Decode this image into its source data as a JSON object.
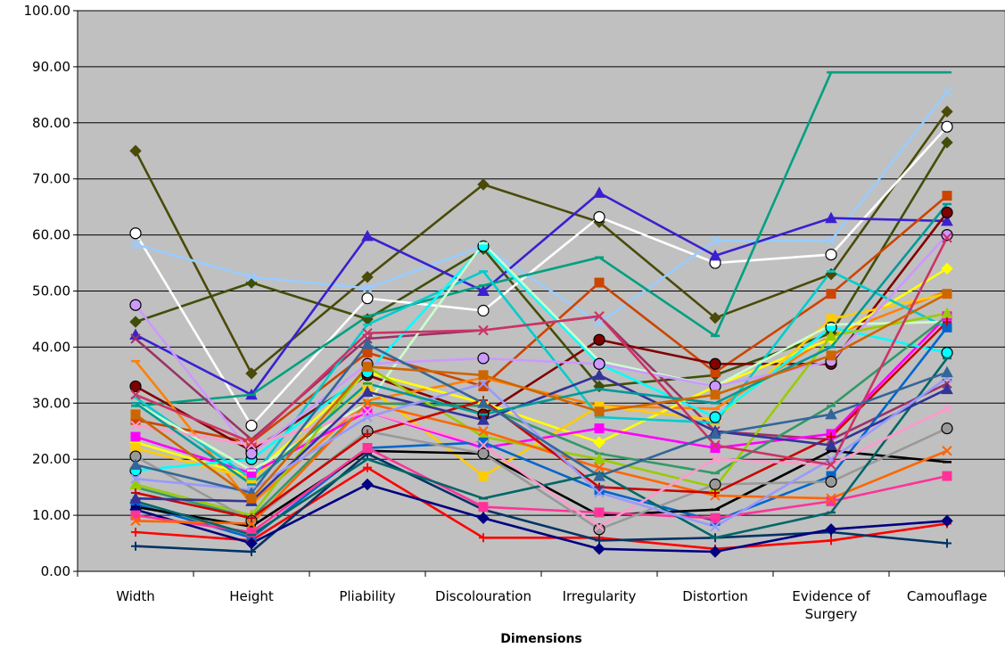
{
  "chart_data": {
    "type": "line",
    "title": "",
    "xlabel": "Dimensions",
    "ylabel": "",
    "ylim": [
      0,
      100
    ],
    "yticks": [
      0,
      10,
      20,
      30,
      40,
      50,
      60,
      70,
      80,
      90,
      100
    ],
    "ytick_labels": [
      "0.00",
      "10.00",
      "20.00",
      "30.00",
      "40.00",
      "50.00",
      "60.00",
      "70.00",
      "80.00",
      "90.00",
      "100.00"
    ],
    "categories": [
      "Width",
      "Height",
      "Pliability",
      "Discolouration",
      "Irregularity",
      "Distortion",
      "Evidence of Surgery",
      "Camouflage"
    ],
    "category_lines": [
      [
        "Width"
      ],
      [
        "Height"
      ],
      [
        "Pliability"
      ],
      [
        "Discolouration"
      ],
      [
        "Irregularity"
      ],
      [
        "Distortion"
      ],
      [
        "Evidence of",
        "Surgery"
      ],
      [
        "Camouflage"
      ]
    ],
    "grid": true,
    "legend": "none",
    "plot_background": "#c0c0c0",
    "series": [
      {
        "color": "#4a4a0a",
        "marker": "diamond",
        "values": [
          75.0,
          35.3,
          52.5,
          69.0,
          62.3,
          45.2,
          53.0,
          82.0
        ]
      },
      {
        "color": "#3f4f0a",
        "marker": "diamond",
        "values": [
          44.5,
          51.5,
          45.0,
          57.5,
          33.0,
          35.0,
          42.5,
          76.5
        ]
      },
      {
        "color": "#ffffff",
        "marker": "circle",
        "values": [
          60.3,
          26.0,
          48.7,
          46.5,
          63.2,
          55.0,
          56.5,
          79.3
        ]
      },
      {
        "color": "#99ccff",
        "marker": "x",
        "values": [
          58.3,
          52.5,
          50.5,
          58.0,
          44.3,
          59.0,
          59.0,
          85.5
        ]
      },
      {
        "color": "#3a20d0",
        "marker": "triangle",
        "values": [
          42.2,
          31.5,
          59.8,
          50.0,
          67.5,
          56.3,
          63.0,
          62.5
        ]
      },
      {
        "color": "#00a080",
        "marker": "dash",
        "values": [
          29.5,
          31.5,
          45.5,
          51.0,
          56.0,
          42.0,
          89.0,
          89.0
        ]
      },
      {
        "color": "#993366",
        "marker": "x",
        "values": [
          41.5,
          23.5,
          41.5,
          43.0,
          45.5,
          25.0,
          23.5,
          33.5
        ]
      },
      {
        "color": "#cc4400",
        "marker": "square",
        "values": [
          27.0,
          23.0,
          39.0,
          33.0,
          51.5,
          35.5,
          49.5,
          67.0
        ]
      },
      {
        "color": "#800000",
        "marker": "circle",
        "values": [
          33.0,
          21.5,
          35.0,
          28.0,
          41.3,
          37.0,
          37.0,
          64.0
        ]
      },
      {
        "color": "#ff8000",
        "marker": "dash",
        "values": [
          37.5,
          12.0,
          30.5,
          34.5,
          29.5,
          29.0,
          42.0,
          50.0
        ]
      },
      {
        "color": "#ffff00",
        "marker": "diamond",
        "values": [
          23.0,
          17.0,
          35.5,
          30.0,
          23.0,
          33.0,
          41.5,
          54.0
        ]
      },
      {
        "color": "#ffcc00",
        "marker": "square",
        "values": [
          22.0,
          16.5,
          33.0,
          17.0,
          29.5,
          27.0,
          45.0,
          49.5
        ]
      },
      {
        "color": "#ff00ff",
        "marker": "square",
        "values": [
          24.0,
          17.5,
          28.5,
          22.0,
          25.5,
          22.0,
          24.5,
          45.5
        ]
      },
      {
        "color": "#00cccc",
        "marker": "dash",
        "values": [
          31.0,
          16.5,
          44.0,
          53.5,
          27.5,
          26.5,
          53.5,
          43.5
        ]
      },
      {
        "color": "#00ffff",
        "marker": "circle",
        "values": [
          18.0,
          20.0,
          35.5,
          58.0,
          37.0,
          27.5,
          43.5,
          39.0
        ]
      },
      {
        "color": "#ccffcc",
        "marker": "dash",
        "values": [
          30.0,
          18.0,
          30.0,
          58.5,
          37.5,
          33.0,
          44.0,
          44.5
        ]
      },
      {
        "color": "#cc99ff",
        "marker": "circle",
        "values": [
          47.5,
          21.0,
          37.0,
          38.0,
          37.0,
          33.0,
          37.5,
          60.0
        ]
      },
      {
        "color": "#339966",
        "marker": "dash",
        "values": [
          15.0,
          9.5,
          30.0,
          29.5,
          21.0,
          17.5,
          29.5,
          45.5
        ]
      },
      {
        "color": "#99cc00",
        "marker": "triangle",
        "values": [
          15.5,
          10.0,
          36.5,
          24.0,
          20.0,
          15.0,
          42.0,
          46.0
        ]
      },
      {
        "color": "#0066cc",
        "marker": "square",
        "values": [
          12.0,
          6.0,
          22.0,
          23.0,
          14.5,
          9.0,
          17.0,
          43.5
        ]
      },
      {
        "color": "#000000",
        "marker": "dash",
        "values": [
          11.5,
          8.0,
          21.5,
          21.0,
          10.0,
          11.0,
          21.5,
          19.5
        ]
      },
      {
        "color": "#ff0000",
        "marker": "plus",
        "values": [
          7.0,
          5.5,
          18.5,
          6.0,
          6.0,
          4.0,
          5.5,
          8.5
        ]
      },
      {
        "color": "#003366",
        "marker": "plus",
        "values": [
          4.5,
          3.5,
          21.0,
          11.0,
          5.5,
          6.0,
          7.0,
          5.0
        ]
      },
      {
        "color": "#000080",
        "marker": "diamond",
        "values": [
          11.0,
          5.0,
          15.5,
          9.5,
          4.0,
          3.5,
          7.5,
          9.0
        ]
      },
      {
        "color": "#ff3399",
        "marker": "square",
        "values": [
          10.0,
          7.0,
          22.0,
          11.5,
          10.5,
          9.5,
          12.5,
          17.0
        ]
      },
      {
        "color": "#999999",
        "marker": "circle",
        "values": [
          20.5,
          9.0,
          25.0,
          21.0,
          7.5,
          15.5,
          16.0,
          25.5
        ]
      },
      {
        "color": "#ff6600",
        "marker": "x",
        "values": [
          9.0,
          8.5,
          30.0,
          25.0,
          18.5,
          13.5,
          13.0,
          21.5
        ]
      },
      {
        "color": "#cc0000",
        "marker": "plus",
        "values": [
          14.0,
          9.5,
          24.5,
          30.5,
          15.0,
          14.0,
          24.0,
          44.5
        ]
      },
      {
        "color": "#006666",
        "marker": "dash",
        "values": [
          12.5,
          6.5,
          20.0,
          13.0,
          17.5,
          6.0,
          10.5,
          38.0
        ]
      },
      {
        "color": "#ff99cc",
        "marker": "x",
        "values": [
          26.0,
          22.5,
          28.5,
          22.5,
          8.0,
          20.0,
          19.0,
          29.0
        ]
      },
      {
        "color": "#333399",
        "marker": "triangle",
        "values": [
          13.0,
          12.5,
          32.0,
          27.0,
          35.0,
          25.0,
          22.5,
          32.5
        ]
      },
      {
        "color": "#9999ff",
        "marker": "x",
        "values": [
          16.5,
          14.5,
          27.5,
          33.5,
          14.0,
          8.0,
          20.0,
          34.5
        ]
      },
      {
        "color": "#cc3366",
        "marker": "x",
        "values": [
          31.5,
          23.0,
          42.5,
          43.0,
          45.5,
          22.5,
          19.0,
          59.5
        ]
      },
      {
        "color": "#009999",
        "marker": "dash",
        "values": [
          30.0,
          15.5,
          33.5,
          28.0,
          32.5,
          30.0,
          40.0,
          65.5
        ]
      },
      {
        "color": "#336699",
        "marker": "triangle",
        "values": [
          19.0,
          14.0,
          40.5,
          30.0,
          17.0,
          24.5,
          28.0,
          35.5
        ]
      },
      {
        "color": "#cc6600",
        "marker": "square",
        "values": [
          28.0,
          13.0,
          36.5,
          35.0,
          28.5,
          31.5,
          38.5,
          49.5
        ]
      }
    ]
  }
}
